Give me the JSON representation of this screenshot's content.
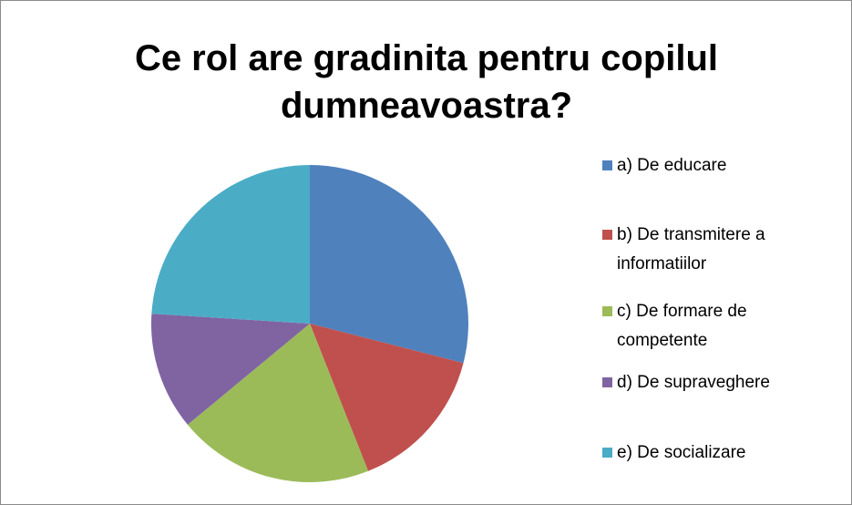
{
  "chart_data": {
    "type": "pie",
    "title": "Ce rol are gradinita pentru copilul dumneavoastra?",
    "categories": [
      "a) De educare",
      "b) De transmitere a informatiilor",
      "c) De formare de competente",
      "d) De supraveghere",
      "e) De socializare"
    ],
    "values": [
      29,
      15,
      20,
      12,
      24
    ],
    "colors": [
      "#4f81bd",
      "#c0504d",
      "#9bbb59",
      "#8064a2",
      "#4bacc6"
    ],
    "legend": "right"
  }
}
